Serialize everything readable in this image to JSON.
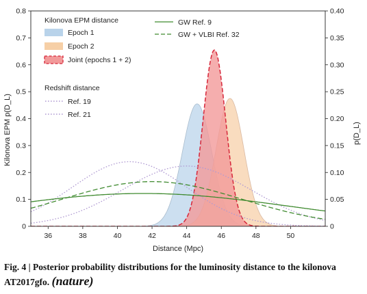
{
  "chart_data": {
    "type": "area",
    "xlabel": "Distance (Mpc)",
    "ylabel_left": "Kilonova EPM p(D_L)",
    "ylabel_right": "p(D_L)",
    "xlim": [
      35,
      52
    ],
    "ylim_left": [
      0,
      0.8
    ],
    "ylim_right": [
      0,
      0.4
    ],
    "x_ticks": [
      "36",
      "38",
      "40",
      "42",
      "44",
      "46",
      "48",
      "50"
    ],
    "y_ticks_left": [
      "0",
      "0.1",
      "0.2",
      "0.3",
      "0.4",
      "0.5",
      "0.6",
      "0.7",
      "0.8"
    ],
    "y_ticks_right": [
      "0",
      "0.05",
      "0.10",
      "0.15",
      "0.20",
      "0.25",
      "0.30",
      "0.35",
      "0.40"
    ],
    "legend": {
      "group1_title": "Kilonova EPM distance",
      "group2_title": "Redshift distance",
      "entries": [
        {
          "label": "Epoch 1",
          "kind": "fill",
          "color": "#b9d3ea"
        },
        {
          "label": "Epoch 2",
          "kind": "fill",
          "color": "#f6cfa6"
        },
        {
          "label": "Joint (epochs 1 + 2)",
          "kind": "fill-dashed",
          "color": "#f29a9a"
        },
        {
          "label": "Ref. 19",
          "kind": "dotted",
          "color": "#b09ad2"
        },
        {
          "label": "Ref. 21",
          "kind": "dotted",
          "color": "#b09ad2"
        },
        {
          "label": "GW Ref. 9",
          "kind": "solid",
          "color": "#3f8a2f"
        },
        {
          "label": "GW + VLBI Ref. 32",
          "kind": "dashed",
          "color": "#3f8a2f"
        }
      ]
    },
    "series": [
      {
        "name": "Epoch 1",
        "axis": "left",
        "mean": 44.6,
        "sd": 0.85,
        "peak": 0.455,
        "color": "#b9d3ea",
        "stroke": "#a9bccd"
      },
      {
        "name": "Epoch 2",
        "axis": "left",
        "mean": 46.5,
        "sd": 0.8,
        "peak": 0.475,
        "color": "#f6cfa6",
        "stroke": "#d9b9a2"
      },
      {
        "name": "Joint (epochs 1 + 2)",
        "axis": "left",
        "mean": 45.6,
        "sd": 0.65,
        "peak": 0.655,
        "color": "#f29a9a",
        "stroke": "#d6263a"
      },
      {
        "name": "Ref. 19",
        "axis": "right",
        "mean": 40.7,
        "sd": 3.3,
        "peak": 0.12,
        "color": "#b09ad2"
      },
      {
        "name": "Ref. 21",
        "axis": "right",
        "mean": 44.0,
        "sd": 3.7,
        "peak": 0.112,
        "color": "#b09ad2"
      },
      {
        "name": "GW Ref. 9",
        "axis": "right",
        "mean": 41.5,
        "sd": 8.5,
        "peak": 0.061,
        "color": "#3f8a2f"
      },
      {
        "name": "GW + VLBI Ref. 32",
        "axis": "right",
        "mean": 42.0,
        "sd": 5.2,
        "peak": 0.083,
        "color": "#3f8a2f"
      }
    ]
  },
  "caption": {
    "text": "Fig. 4 | Posterior probability distributions for the luminosity distance to the kilonova AT2017gfo.",
    "journal": "(nature)"
  }
}
